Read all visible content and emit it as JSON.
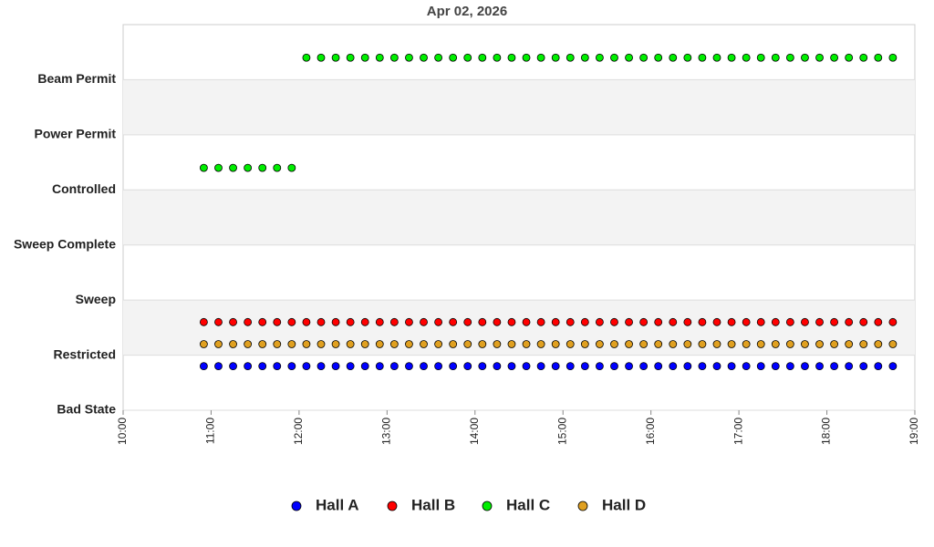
{
  "chart_data": {
    "type": "scatter",
    "title": "Apr 02, 2026",
    "x": [
      "10:55",
      "11:05",
      "11:15",
      "11:25",
      "11:35",
      "11:45",
      "11:55",
      "12:05",
      "12:15",
      "12:25",
      "12:35",
      "12:45",
      "12:55",
      "13:05",
      "13:15",
      "13:25",
      "13:35",
      "13:45",
      "13:55",
      "14:05",
      "14:15",
      "14:25",
      "14:35",
      "14:45",
      "14:55",
      "15:05",
      "15:15",
      "15:25",
      "15:35",
      "15:45",
      "15:55",
      "16:05",
      "16:15",
      "16:25",
      "16:35",
      "16:45",
      "16:55",
      "17:05",
      "17:15",
      "17:25",
      "17:35",
      "17:45",
      "17:55",
      "18:05",
      "18:15",
      "18:25",
      "18:35",
      "18:45"
    ],
    "series": [
      {
        "name": "Hall A",
        "color": "#0000ff",
        "values": [
          0.8,
          0.8,
          0.8,
          0.8,
          0.8,
          0.8,
          0.8,
          0.8,
          0.8,
          0.8,
          0.8,
          0.8,
          0.8,
          0.8,
          0.8,
          0.8,
          0.8,
          0.8,
          0.8,
          0.8,
          0.8,
          0.8,
          0.8,
          0.8,
          0.8,
          0.8,
          0.8,
          0.8,
          0.8,
          0.8,
          0.8,
          0.8,
          0.8,
          0.8,
          0.8,
          0.8,
          0.8,
          0.8,
          0.8,
          0.8,
          0.8,
          0.8,
          0.8,
          0.8,
          0.8,
          0.8,
          0.8,
          0.8
        ]
      },
      {
        "name": "Hall B",
        "color": "#ff0000",
        "values": [
          1.6,
          1.6,
          1.6,
          1.6,
          1.6,
          1.6,
          1.6,
          1.6,
          1.6,
          1.6,
          1.6,
          1.6,
          1.6,
          1.6,
          1.6,
          1.6,
          1.6,
          1.6,
          1.6,
          1.6,
          1.6,
          1.6,
          1.6,
          1.6,
          1.6,
          1.6,
          1.6,
          1.6,
          1.6,
          1.6,
          1.6,
          1.6,
          1.6,
          1.6,
          1.6,
          1.6,
          1.6,
          1.6,
          1.6,
          1.6,
          1.6,
          1.6,
          1.6,
          1.6,
          1.6,
          1.6,
          1.6,
          1.6
        ]
      },
      {
        "name": "Hall C",
        "color": "#00ee00",
        "values": [
          4.4,
          4.4,
          4.4,
          4.4,
          4.4,
          4.4,
          4.4,
          6.4,
          6.4,
          6.4,
          6.4,
          6.4,
          6.4,
          6.4,
          6.4,
          6.4,
          6.4,
          6.4,
          6.4,
          6.4,
          6.4,
          6.4,
          6.4,
          6.4,
          6.4,
          6.4,
          6.4,
          6.4,
          6.4,
          6.4,
          6.4,
          6.4,
          6.4,
          6.4,
          6.4,
          6.4,
          6.4,
          6.4,
          6.4,
          6.4,
          6.4,
          6.4,
          6.4,
          6.4,
          6.4,
          6.4,
          6.4,
          6.4
        ]
      },
      {
        "name": "Hall D",
        "color": "#e0a020",
        "values": [
          1.2,
          1.2,
          1.2,
          1.2,
          1.2,
          1.2,
          1.2,
          1.2,
          1.2,
          1.2,
          1.2,
          1.2,
          1.2,
          1.2,
          1.2,
          1.2,
          1.2,
          1.2,
          1.2,
          1.2,
          1.2,
          1.2,
          1.2,
          1.2,
          1.2,
          1.2,
          1.2,
          1.2,
          1.2,
          1.2,
          1.2,
          1.2,
          1.2,
          1.2,
          1.2,
          1.2,
          1.2,
          1.2,
          1.2,
          1.2,
          1.2,
          1.2,
          1.2,
          1.2,
          1.2,
          1.2,
          1.2,
          1.2
        ]
      }
    ],
    "xlim": [
      "10:00",
      "19:00"
    ],
    "xticks": [
      "10:00",
      "11:00",
      "12:00",
      "13:00",
      "14:00",
      "15:00",
      "16:00",
      "17:00",
      "18:00",
      "19:00"
    ],
    "ylim": [
      0,
      7
    ],
    "yticks": [
      {
        "value": 0,
        "label": "Bad State"
      },
      {
        "value": 1,
        "label": "Restricted"
      },
      {
        "value": 2,
        "label": "Sweep"
      },
      {
        "value": 3,
        "label": "Sweep Complete"
      },
      {
        "value": 4,
        "label": "Controlled"
      },
      {
        "value": 5,
        "label": "Power Permit"
      },
      {
        "value": 6,
        "label": "Beam Permit"
      }
    ],
    "grid": true,
    "legend": "bottom"
  }
}
